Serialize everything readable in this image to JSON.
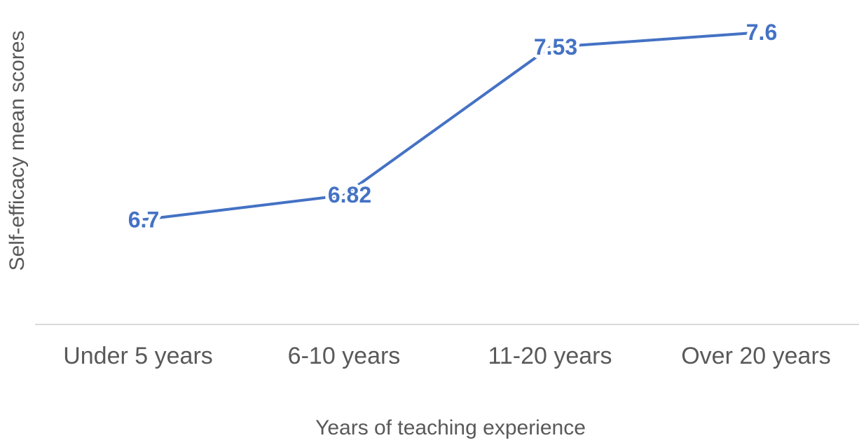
{
  "chart_data": {
    "type": "line",
    "categories": [
      "Under 5 years",
      "6-10 years",
      "11-20 years",
      "Over 20 years"
    ],
    "series": [
      {
        "name": "Self-efficacy mean scores",
        "color": "#4472c4",
        "values": [
          6.7,
          6.82,
          7.53,
          7.6
        ]
      }
    ],
    "ylim": [
      6.2,
      7.75
    ],
    "x_label": "Years of teaching experience",
    "y_label": "Self-efficacy  mean scores"
  }
}
